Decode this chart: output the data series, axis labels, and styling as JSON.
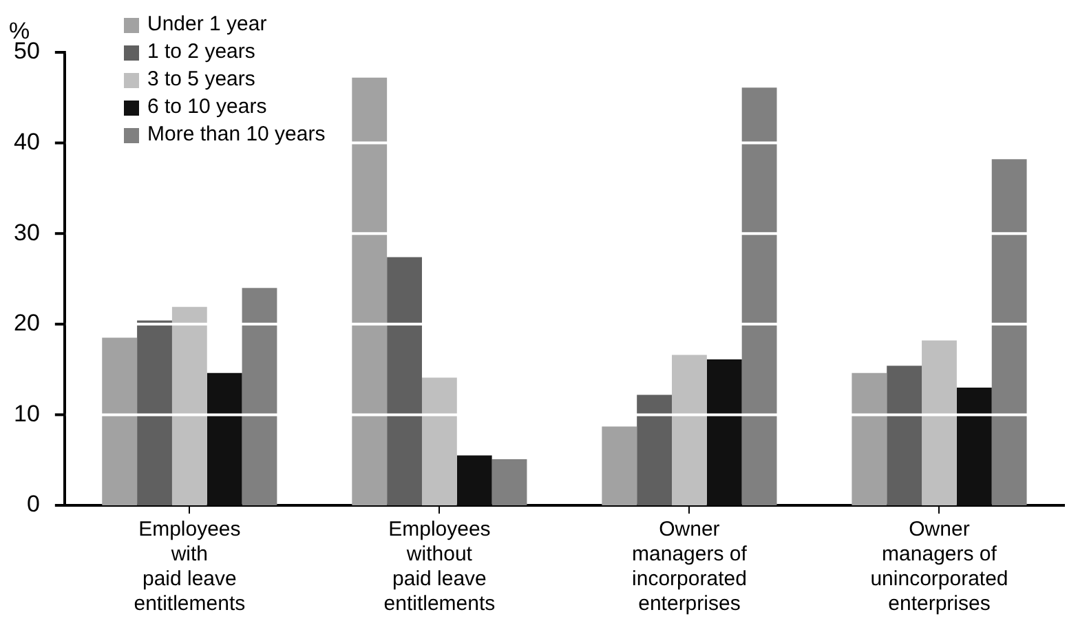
{
  "chart_data": {
    "type": "bar",
    "ylabel": "%",
    "categories": [
      "Employees\nwith\npaid leave\nentitlements",
      "Employees\nwithout\npaid leave\nentitlements",
      "Owner\nmanagers of\nincorporated\nenterprises",
      "Owner\nmanagers of\nunincorporated\nenterprises"
    ],
    "series": [
      {
        "name": "Under 1 year",
        "color": "#a2a2a2",
        "values": [
          18.5,
          47.2,
          8.7,
          14.6
        ]
      },
      {
        "name": "1 to 2 years",
        "color": "#606060",
        "values": [
          20.4,
          27.4,
          12.2,
          15.4
        ]
      },
      {
        "name": "3 to 5 years",
        "color": "#bfbfbf",
        "values": [
          21.9,
          14.1,
          16.6,
          18.2
        ]
      },
      {
        "name": "6 to 10 years",
        "color": "#111111",
        "values": [
          14.6,
          5.5,
          16.1,
          13.0
        ]
      },
      {
        "name": "More than 10 years",
        "color": "#808080",
        "values": [
          24.0,
          5.1,
          46.1,
          38.2
        ]
      }
    ],
    "ylim": [
      0,
      50
    ],
    "yticks": [
      0,
      10,
      20,
      30,
      40,
      50
    ],
    "grid": "y",
    "legend": "top left"
  }
}
